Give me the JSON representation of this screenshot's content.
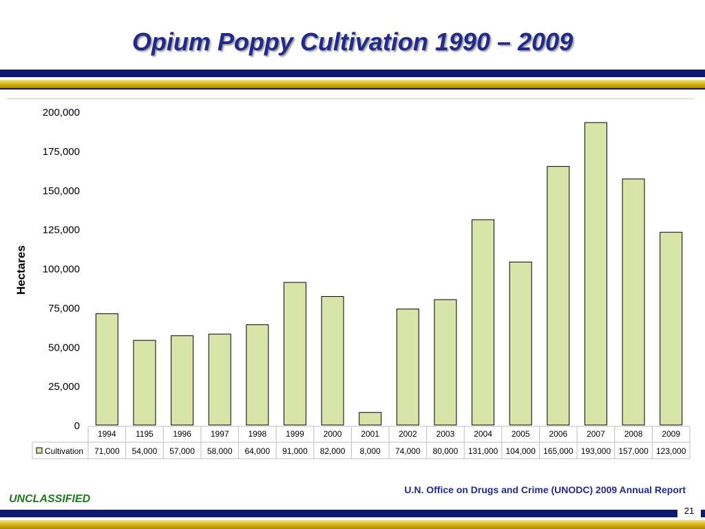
{
  "slide": {
    "title": "Opium Poppy Cultivation 1990 – 2009",
    "source": "U.N. Office on Drugs and Crime (UNODC) 2009 Annual Report",
    "classification": "UNCLASSIFIED",
    "page_number": "21"
  },
  "colors": {
    "title": "#1f2a8c",
    "navy_band": "#0f1a6e",
    "gold_band": "#c9a400",
    "bar_fill": "#d8e4a8",
    "unclassified": "#1b7d1b"
  },
  "chart_data": {
    "type": "bar",
    "ylabel": "Hectares",
    "ylim": [
      0,
      200000
    ],
    "y_ticks": [
      "0",
      "25,000",
      "50,000",
      "75,000",
      "100,000",
      "125,000",
      "150,000",
      "175,000",
      "200,000"
    ],
    "y_tick_values": [
      0,
      25000,
      50000,
      75000,
      100000,
      125000,
      150000,
      175000,
      200000
    ],
    "categories": [
      "1994",
      "1195",
      "1996",
      "1997",
      "1998",
      "1999",
      "2000",
      "2001",
      "2002",
      "2003",
      "2004",
      "2005",
      "2006",
      "2007",
      "2008",
      "2009"
    ],
    "series": [
      {
        "name": "Cultivation",
        "values": [
          71000,
          54000,
          57000,
          58000,
          64000,
          91000,
          82000,
          8000,
          74000,
          80000,
          131000,
          104000,
          165000,
          193000,
          157000,
          123000
        ],
        "labels": [
          "71,000",
          "54,000",
          "57,000",
          "58,000",
          "64,000",
          "91,000",
          "82,000",
          "8,000",
          "74,000",
          "80,000",
          "131,000",
          "104,000",
          "165,000",
          "193,000",
          "157,000",
          "123,000"
        ]
      }
    ],
    "data_table": true,
    "grid": false,
    "legend": "data-table-left"
  }
}
